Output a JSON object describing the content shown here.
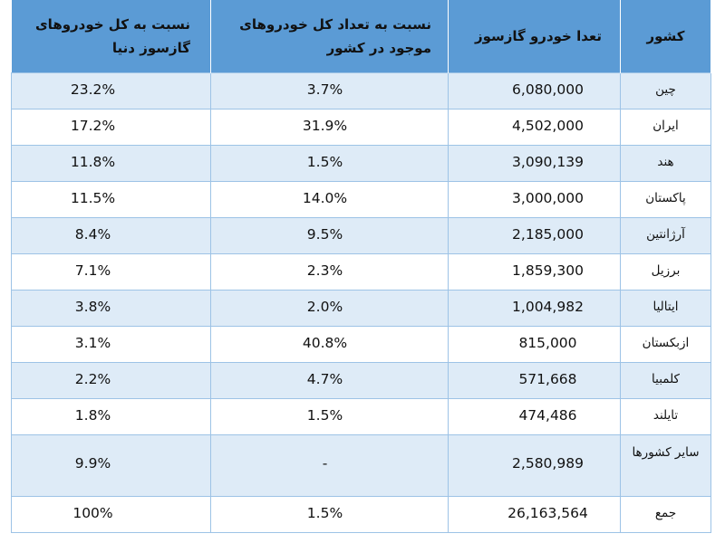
{
  "table": {
    "headers": {
      "world_share": "نسبت به کل خودروهای گازسوز دنیا",
      "country_share": "نسبت به تعداد کل خودروهای موجود در کشور",
      "count": "تعدا خودرو گازسوز",
      "country": "کشور"
    },
    "rows": [
      {
        "world_share": "23.2%",
        "country_share": "3.7%",
        "count": "6,080,000",
        "country": "چین"
      },
      {
        "world_share": "17.2%",
        "country_share": "31.9%",
        "count": "4,502,000",
        "country": "ایران"
      },
      {
        "world_share": "11.8%",
        "country_share": "1.5%",
        "count": "3,090,139",
        "country": "هند"
      },
      {
        "world_share": "11.5%",
        "country_share": "14.0%",
        "count": "3,000,000",
        "country": "پاکستان"
      },
      {
        "world_share": "8.4%",
        "country_share": "9.5%",
        "count": "2,185,000",
        "country": "آرژانتین"
      },
      {
        "world_share": "7.1%",
        "country_share": "2.3%",
        "count": "1,859,300",
        "country": "برزیل"
      },
      {
        "world_share": "3.8%",
        "country_share": "2.0%",
        "count": "1,004,982",
        "country": "ایتالیا"
      },
      {
        "world_share": "3.1%",
        "country_share": "40.8%",
        "count": "815,000",
        "country": "ازبکستان"
      },
      {
        "world_share": "2.2%",
        "country_share": "4.7%",
        "count": "571,668",
        "country": "کلمبیا"
      },
      {
        "world_share": "1.8%",
        "country_share": "1.5%",
        "count": "474,486",
        "country": "تایلند"
      },
      {
        "world_share": "9.9%",
        "country_share": "-",
        "count": "2,580,989",
        "country": "سایر کشورها"
      },
      {
        "world_share": "100%",
        "country_share": "1.5%",
        "count": "26,163,564",
        "country": "جمع"
      }
    ]
  }
}
